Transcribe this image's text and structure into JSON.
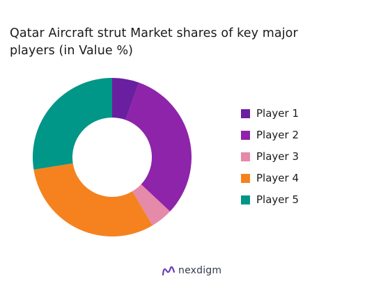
{
  "title": "Qatar Aircraft strut Market shares of key major players (in Value %)",
  "brand": {
    "name": "nexdigm",
    "icon": "nexdigm-logo-icon"
  },
  "chart_data": {
    "type": "pie",
    "donut": true,
    "title": "Qatar Aircraft strut Market shares of key major players (in Value %)",
    "categories": [
      "Player 1",
      "Player 2",
      "Player 3",
      "Player 4",
      "Player 5"
    ],
    "values": [
      5.5,
      31.5,
      4.5,
      31,
      27.5
    ],
    "colors": [
      "#6a1fa0",
      "#8e24aa",
      "#e58aa8",
      "#f5821f",
      "#009688"
    ],
    "legend": "right",
    "legend_labels": [
      "Player 1",
      "Player 2",
      "Player 3",
      "Player 4",
      "Player 5"
    ]
  }
}
